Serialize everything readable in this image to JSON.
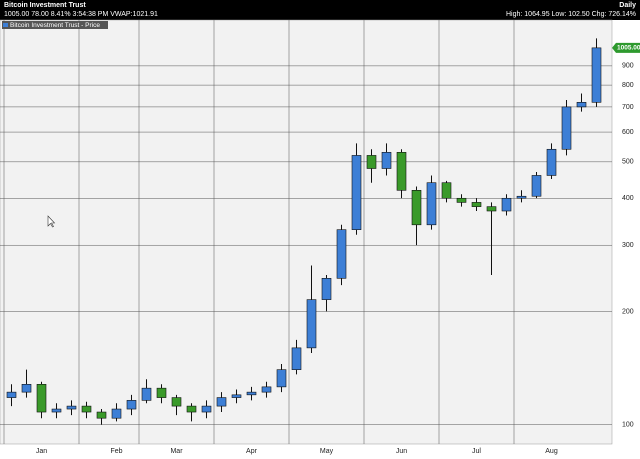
{
  "chart_data": {
    "type": "candlestick",
    "title": "Bitcoin Investment Trust",
    "period": "Daily",
    "quote": "1005.00 78.00 8.41% 3:54:38 PM VWAP:1021.91",
    "stats": "High: 1064.95 Low: 102.50 Chg: 726.14%",
    "legend": "Bitcoin Investment Trust - Price",
    "last_price_label": "1005.00",
    "log_scale": true,
    "grid": true,
    "up_color": "#3d7fd6",
    "down_color": "#3a9a2a",
    "ylim": [
      91,
      1135
    ],
    "yticks": [
      100,
      200,
      300,
      400,
      500,
      600,
      700,
      800,
      900
    ],
    "categories": [
      null,
      null,
      "Jan",
      null,
      null,
      null,
      null,
      "Feb",
      null,
      null,
      null,
      "Mar",
      null,
      null,
      null,
      null,
      "Apr",
      null,
      null,
      null,
      null,
      "May",
      null,
      null,
      null,
      null,
      "Jun",
      null,
      null,
      null,
      null,
      "Jul",
      null,
      null,
      null,
      null,
      "Aug",
      null,
      null,
      null
    ],
    "open": [
      118,
      122,
      128,
      108,
      110,
      112,
      108,
      104,
      110,
      116,
      125,
      118,
      112,
      108,
      112,
      118,
      120,
      122,
      126,
      140,
      160,
      215,
      245,
      330,
      520,
      480,
      530,
      420,
      340,
      440,
      400,
      390,
      380,
      370,
      400,
      405,
      460,
      540,
      700,
      720
    ],
    "high": [
      128,
      140,
      130,
      114,
      116,
      115,
      110,
      114,
      120,
      132,
      128,
      120,
      114,
      116,
      122,
      124,
      126,
      130,
      145,
      168,
      265,
      250,
      340,
      560,
      540,
      560,
      540,
      430,
      460,
      445,
      410,
      400,
      390,
      410,
      420,
      470,
      560,
      730,
      760,
      1065
    ],
    "low": [
      112,
      118,
      104,
      104,
      106,
      104,
      100,
      102,
      106,
      114,
      114,
      106,
      102,
      104,
      108,
      114,
      116,
      118,
      122,
      136,
      155,
      200,
      235,
      320,
      440,
      460,
      400,
      300,
      330,
      390,
      380,
      370,
      250,
      360,
      390,
      400,
      450,
      520,
      680,
      700
    ],
    "close": [
      122,
      128,
      108,
      110,
      112,
      108,
      104,
      110,
      116,
      125,
      118,
      112,
      108,
      112,
      118,
      120,
      122,
      126,
      140,
      160,
      215,
      245,
      330,
      520,
      480,
      530,
      420,
      340,
      440,
      400,
      390,
      380,
      370,
      400,
      405,
      460,
      540,
      700,
      720,
      1005
    ]
  }
}
